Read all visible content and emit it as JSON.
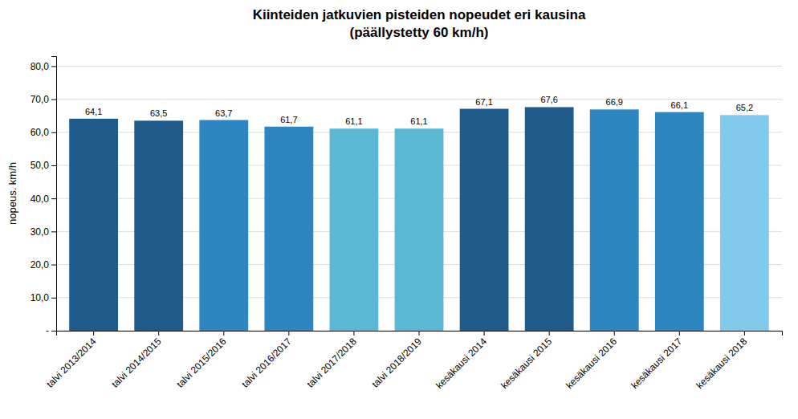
{
  "chart_data": {
    "type": "bar",
    "title": "Kiinteiden jatkuvien pisteiden nopeudet eri kausina\n(päällystetty 60 km/h)",
    "y_label": "nopeus. km/h",
    "categories": [
      "talvi 2013/2014",
      "talvi 2014/2015",
      "talvi 2015/2016",
      "talvi 2016/2017",
      "talvi 2017/2018",
      "talvi 2018/2019",
      "kesäkausi 2014",
      "kesäkausi 2015",
      "kesäkausi 2016",
      "kesäkausi 2017",
      "kesäkausi 2018"
    ],
    "values": [
      64.1,
      63.5,
      63.7,
      61.7,
      61.1,
      61.1,
      67.1,
      67.6,
      66.9,
      66.1,
      65.2
    ],
    "value_labels": [
      "64,1",
      "63,5",
      "63,7",
      "61,7",
      "61,1",
      "61,1",
      "67,1",
      "67,6",
      "66,9",
      "66,1",
      "65,2"
    ],
    "colors": [
      "#1F5C8B",
      "#1F5C8B",
      "#2E86C1",
      "#2E86C1",
      "#5BB8D4",
      "#5BB8D4",
      "#1F5C8B",
      "#1F5C8B",
      "#2E86C1",
      "#2E86C1",
      "#82CAEC"
    ],
    "ylim": [
      0,
      83
    ],
    "yticks": [
      {
        "value": 0,
        "label": "-"
      },
      {
        "value": 10,
        "label": "10,0"
      },
      {
        "value": 20,
        "label": "20,0"
      },
      {
        "value": 30,
        "label": "30,0"
      },
      {
        "value": 40,
        "label": "40,0"
      },
      {
        "value": 50,
        "label": "50,0"
      },
      {
        "value": 60,
        "label": "60,0"
      },
      {
        "value": 70,
        "label": "70,0"
      },
      {
        "value": 80,
        "label": "80,0"
      }
    ],
    "grid": true,
    "data_labels": true
  }
}
